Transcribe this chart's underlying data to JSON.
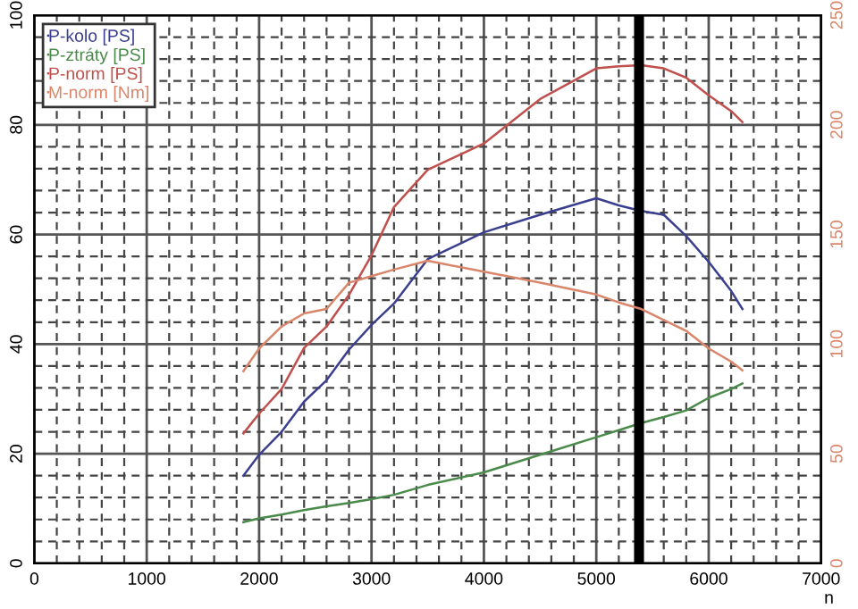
{
  "chart_data": {
    "type": "line",
    "xlabel": "n",
    "x": [
      1860,
      2000,
      2200,
      2400,
      2600,
      2800,
      3000,
      3200,
      3500,
      4000,
      4500,
      5000,
      5200,
      5400,
      5600,
      5800,
      6000,
      6200,
      6300
    ],
    "series": [
      {
        "name": "P-kolo [PS]",
        "color": "#3b3f8f",
        "values": [
          16,
          19.8,
          24,
          29.5,
          33.4,
          39,
          43.5,
          47.4,
          55.5,
          60.4,
          63.6,
          66.6,
          65.3,
          64.3,
          63.6,
          59.7,
          55,
          49.7,
          46.4
        ]
      },
      {
        "name": "P-ztráty [PS]",
        "color": "#4a8a4a",
        "values": [
          7.5,
          8.2,
          8.9,
          9.7,
          10.4,
          11,
          11.7,
          12.5,
          14.3,
          16.6,
          19.8,
          23,
          24.3,
          25.6,
          26.7,
          27.9,
          30.2,
          31.8,
          32.8
        ]
      },
      {
        "name": "P-norm [PS]",
        "color": "#c0504d",
        "values": [
          23.7,
          27.3,
          31.8,
          39.3,
          43.2,
          49,
          56.2,
          65,
          71.8,
          76.6,
          84.7,
          90.3,
          90.7,
          90.9,
          90.3,
          88.6,
          85.4,
          82.5,
          80.5
        ]
      },
      {
        "name": "M-norm [Nm]",
        "color": "#d9866a",
        "axis": "y2",
        "values": [
          87.6,
          98,
          108,
          114,
          116,
          128,
          131,
          134,
          138,
          133,
          128,
          122.6,
          119,
          116,
          111,
          106,
          98,
          92,
          88
        ]
      }
    ],
    "xlim": [
      0,
      7000
    ],
    "xticks": [
      0,
      1000,
      2000,
      3000,
      4000,
      5000,
      6000,
      7000
    ],
    "ylim": [
      0,
      100
    ],
    "yticks": [
      0,
      20,
      40,
      60,
      80,
      100
    ],
    "y2lim": [
      0,
      250
    ],
    "y2ticks": [
      0,
      50,
      100,
      150,
      200,
      250
    ],
    "ref_lines": [
      {
        "axis": "x",
        "value": 5380,
        "color": "#000000"
      }
    ],
    "grid": true,
    "legend": "top left",
    "marker": "none",
    "line_style": "solid"
  }
}
